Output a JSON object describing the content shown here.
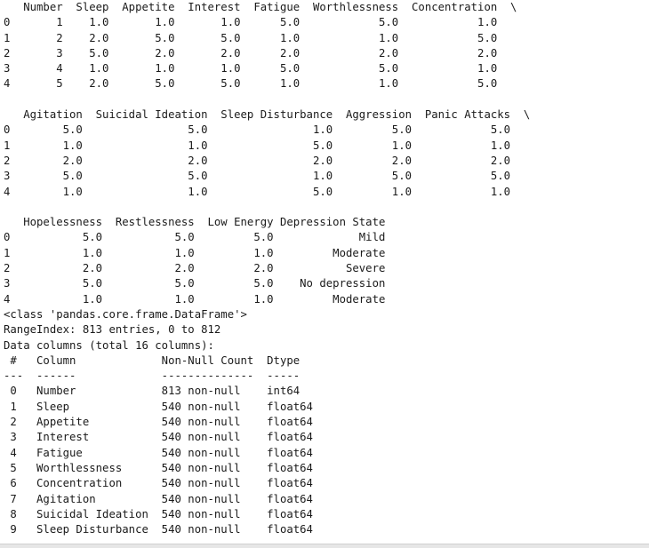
{
  "output_lines": [
    "   Number  Sleep  Appetite  Interest  Fatigue  Worthlessness  Concentration  \\",
    "0       1    1.0       1.0       1.0      5.0            5.0            1.0",
    "1       2    2.0       5.0       5.0      1.0            1.0            5.0",
    "2       3    5.0       2.0       2.0      2.0            2.0            2.0",
    "3       4    1.0       1.0       1.0      5.0            5.0            1.0",
    "4       5    2.0       5.0       5.0      1.0            1.0            5.0",
    "",
    "   Agitation  Suicidal Ideation  Sleep Disturbance  Aggression  Panic Attacks  \\",
    "0        5.0                5.0                1.0         5.0            5.0",
    "1        1.0                1.0                5.0         1.0            1.0",
    "2        2.0                2.0                2.0         2.0            2.0",
    "3        5.0                5.0                1.0         5.0            5.0",
    "4        1.0                1.0                5.0         1.0            1.0",
    "",
    "   Hopelessness  Restlessness  Low Energy Depression State",
    "0           5.0           5.0         5.0             Mild",
    "1           1.0           1.0         1.0         Moderate",
    "2           2.0           2.0         2.0           Severe",
    "3           5.0           5.0         5.0    No depression",
    "4           1.0           1.0         1.0         Moderate",
    "<class 'pandas.core.frame.DataFrame'>",
    "RangeIndex: 813 entries, 0 to 812",
    "Data columns (total 16 columns):",
    " #   Column             Non-Null Count  Dtype  ",
    "---  ------             --------------  -----  ",
    " 0   Number             813 non-null    int64  ",
    " 1   Sleep              540 non-null    float64",
    " 2   Appetite           540 non-null    float64",
    " 3   Interest           540 non-null    float64",
    " 4   Fatigue            540 non-null    float64",
    " 5   Worthlessness      540 non-null    float64",
    " 6   Concentration      540 non-null    float64",
    " 7   Agitation          540 non-null    float64",
    " 8   Suicidal Ideation  540 non-null    float64",
    " 9   Sleep Disturbance  540 non-null    float64"
  ]
}
